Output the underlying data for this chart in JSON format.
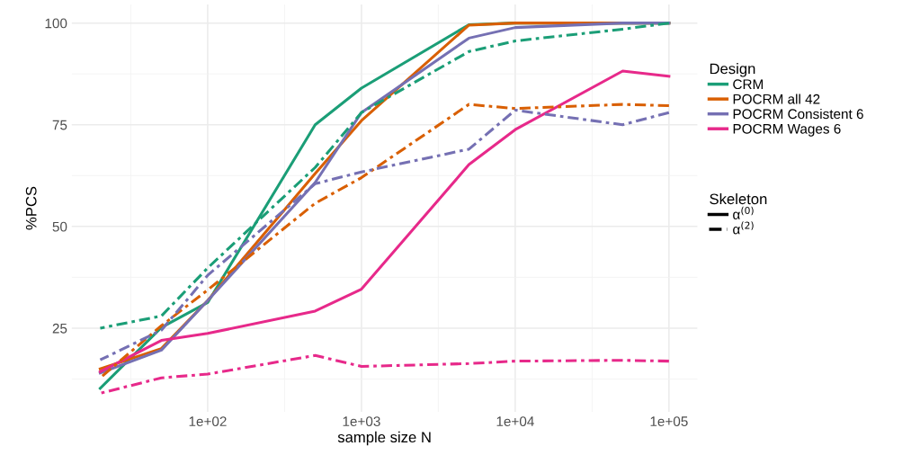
{
  "chart_data": {
    "type": "line",
    "xlabel": "sample size N",
    "ylabel": "%PCS",
    "log": "x",
    "xlim": [
      13.06,
      153000
    ],
    "xticks": [
      {
        "value": 100,
        "label": "1e+02"
      },
      {
        "value": 1000,
        "label": "1e+03"
      },
      {
        "value": 10000,
        "label": "1e+04"
      },
      {
        "value": 100000,
        "label": "1e+05"
      }
    ],
    "ylim": [
      4.45,
      104.55
    ],
    "yticks": [
      25,
      50,
      75,
      100
    ],
    "grid": true,
    "legend": "right",
    "legend_title": "Design",
    "annotations": [
      "Skeleton",
      "α$^{(0)}$",
      "α$^{(2)}$"
    ],
    "x": [
      20,
      50,
      100,
      500,
      1000,
      5000,
      10000,
      50000,
      100000
    ],
    "series": [
      {
        "name": "CRM",
        "color": "#1b9e77",
        "line_style": "solid",
        "values": [
          10.2,
          25.2,
          31.3,
          75,
          84,
          99.6,
          100,
          100,
          100
        ]
      },
      {
        "color": "#1b9e77",
        "line_style": "dashdot",
        "values": [
          25,
          28,
          39.8,
          64.5,
          78,
          93,
          95.6,
          98.5,
          100
        ]
      },
      {
        "name": "POCRM all 42",
        "color": "#d95f02",
        "line_style": "solid",
        "values": [
          15,
          20,
          31.8,
          63,
          76,
          99.5,
          100,
          100,
          100
        ]
      },
      {
        "color": "#d95f02",
        "line_style": "dashdot",
        "values": [
          12.8,
          25.6,
          34.4,
          55.7,
          62,
          80,
          79,
          80,
          79.7
        ]
      },
      {
        "name": "POCRM Consistent 6",
        "color": "#7570b3",
        "line_style": "solid",
        "values": [
          14,
          19.6,
          31.8,
          60.8,
          78,
          96.3,
          98.9,
          100,
          100
        ]
      },
      {
        "color": "#7570b3",
        "line_style": "dashdot",
        "values": [
          17.2,
          24.5,
          38,
          60.5,
          63.4,
          69,
          78.6,
          75,
          78
        ]
      },
      {
        "name": "POCRM Wages 6",
        "color": "#e7298a",
        "line_style": "solid",
        "values": [
          14.3,
          22,
          23.7,
          29.2,
          34.6,
          65.2,
          73.8,
          88.2,
          86.9
        ]
      },
      {
        "color": "#e7298a",
        "line_style": "dashdot",
        "values": [
          9,
          12.8,
          13.7,
          18.3,
          15.6,
          16.3,
          16.9,
          17.1,
          16.9
        ]
      }
    ]
  }
}
